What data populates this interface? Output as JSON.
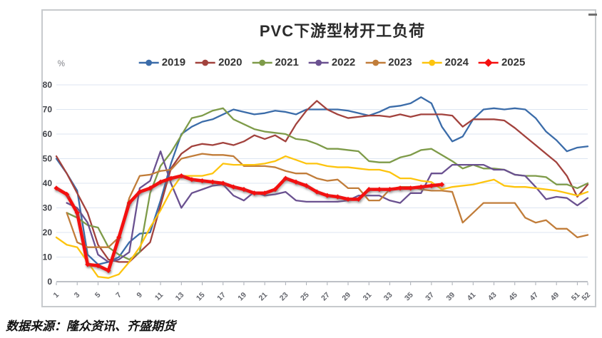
{
  "page": {
    "source_note": "数据来源：隆众资讯、齐盛期货"
  },
  "chart_data": {
    "type": "line",
    "title": "PVC下游型材开工负荷",
    "ylabel": "%",
    "xlabel": "",
    "ylim": [
      0,
      80
    ],
    "yticks": [
      0,
      10,
      20,
      30,
      40,
      50,
      60,
      70,
      80
    ],
    "xticks": [
      1,
      3,
      5,
      7,
      9,
      11,
      13,
      15,
      17,
      19,
      21,
      23,
      25,
      27,
      29,
      31,
      33,
      35,
      37,
      39,
      41,
      43,
      45,
      47,
      49,
      51,
      52
    ],
    "x_unit": "week",
    "grid": true,
    "legend_position": "top",
    "series": [
      {
        "name": "2019",
        "color": "#3B6CA9",
        "line_width": 2.3,
        "marker": "none",
        "shadow": false,
        "values": [
          50,
          44,
          37,
          11,
          7,
          8,
          10,
          16,
          19.5,
          20,
          33,
          48,
          60,
          63,
          65,
          66,
          68,
          70,
          69,
          68,
          68.5,
          69.5,
          69,
          68,
          70,
          70,
          70,
          70,
          69.5,
          68.5,
          67.5,
          69,
          71,
          71.5,
          72.5,
          75,
          72.5,
          63,
          57,
          59,
          66,
          70,
          70.5,
          70,
          70.5,
          70,
          66.5,
          61,
          57.5,
          53,
          54.5,
          55
        ]
      },
      {
        "name": "2020",
        "color": "#A2423D",
        "line_width": 2.3,
        "marker": "none",
        "shadow": false,
        "values": [
          51,
          44,
          36,
          28,
          15,
          9,
          8,
          8,
          12,
          16,
          31,
          46,
          52,
          55,
          56,
          55.5,
          56.5,
          55.5,
          57,
          59.5,
          58,
          59.5,
          57,
          64,
          69.5,
          73.5,
          70,
          68,
          66.5,
          67,
          67.5,
          67.5,
          67,
          68,
          67,
          68,
          68,
          68,
          67.5,
          63,
          66,
          66,
          66,
          65.5,
          62.5,
          59,
          55.5,
          52,
          48.5,
          43,
          34.5,
          39.5
        ]
      },
      {
        "name": "2021",
        "color": "#7E9B49",
        "line_width": 2.3,
        "marker": "none",
        "shadow": false,
        "values": [
          null,
          28,
          26,
          23,
          22,
          14,
          11,
          9,
          12,
          36,
          47,
          52.5,
          59.5,
          66.5,
          67.5,
          69.5,
          70.5,
          66,
          64,
          62,
          61,
          60.5,
          60,
          58,
          57.5,
          56,
          54,
          54,
          53.5,
          53,
          49,
          48.5,
          48.5,
          50.5,
          51.5,
          53.5,
          54,
          51.5,
          49,
          46,
          47.5,
          46,
          46,
          45.5,
          43.5,
          43,
          43,
          42.5,
          39.5,
          39.5,
          38,
          40
        ]
      },
      {
        "name": "2022",
        "color": "#6A5190",
        "line_width": 2.3,
        "marker": "none",
        "shadow": false,
        "values": [
          null,
          32,
          30,
          24,
          11,
          8,
          9,
          12,
          38,
          41,
          53,
          40,
          30,
          36,
          37.5,
          39,
          39.5,
          35,
          33,
          36.5,
          35,
          35.5,
          36.5,
          33,
          32.5,
          32.5,
          32.5,
          32.5,
          33,
          35,
          35,
          35,
          33,
          32,
          36,
          36,
          44,
          44,
          47.5,
          47.5,
          47.5,
          47.5,
          45.5,
          45.5,
          43.5,
          43,
          38.5,
          33.5,
          34.5,
          34,
          31,
          34
        ]
      },
      {
        "name": "2023",
        "color": "#C17D3A",
        "line_width": 2.3,
        "marker": "none",
        "shadow": false,
        "values": [
          null,
          28,
          16,
          14,
          14,
          14,
          18,
          34,
          43,
          43.5,
          45,
          45.5,
          50,
          51,
          52,
          51.5,
          51.5,
          51,
          47,
          47,
          47,
          46.5,
          45,
          44,
          44,
          42,
          41,
          41.5,
          38,
          38,
          33,
          33,
          37.5,
          38.5,
          38.5,
          37.5,
          37,
          37,
          36.5,
          24,
          28,
          32,
          32,
          32,
          32,
          26,
          24,
          25,
          21.5,
          21.5,
          18,
          19
        ]
      },
      {
        "name": "2024",
        "color": "#FDC40E",
        "line_width": 2.3,
        "marker": "none",
        "shadow": false,
        "values": [
          18,
          15,
          14,
          8,
          2,
          1.5,
          3,
          8,
          14,
          22,
          29,
          37,
          43,
          43,
          43,
          44,
          48,
          47.5,
          47.5,
          47.5,
          48,
          49,
          51,
          49.5,
          48,
          48,
          47,
          46.5,
          46.5,
          46,
          45.5,
          45.5,
          44.5,
          42,
          42,
          41,
          40.5,
          37.5,
          38.5,
          39,
          39.5,
          40.5,
          41.5,
          39,
          38.5,
          38.5,
          38,
          37.5,
          37,
          36,
          35,
          36.5
        ]
      },
      {
        "name": "2025",
        "color": "#F50F0F",
        "line_width": 4.6,
        "marker": "diamond",
        "shadow": true,
        "values": [
          38,
          35.5,
          28,
          7,
          6.5,
          4.5,
          18,
          32,
          36.5,
          38,
          40.5,
          42,
          43,
          41.5,
          41,
          40.5,
          40,
          38.5,
          37.5,
          36,
          36,
          37.5,
          42,
          40.5,
          39,
          36.5,
          35,
          34.5,
          33.5,
          33.5,
          37.5,
          37.5,
          37.5,
          38,
          38,
          38.5,
          39,
          39.5
        ]
      }
    ]
  }
}
